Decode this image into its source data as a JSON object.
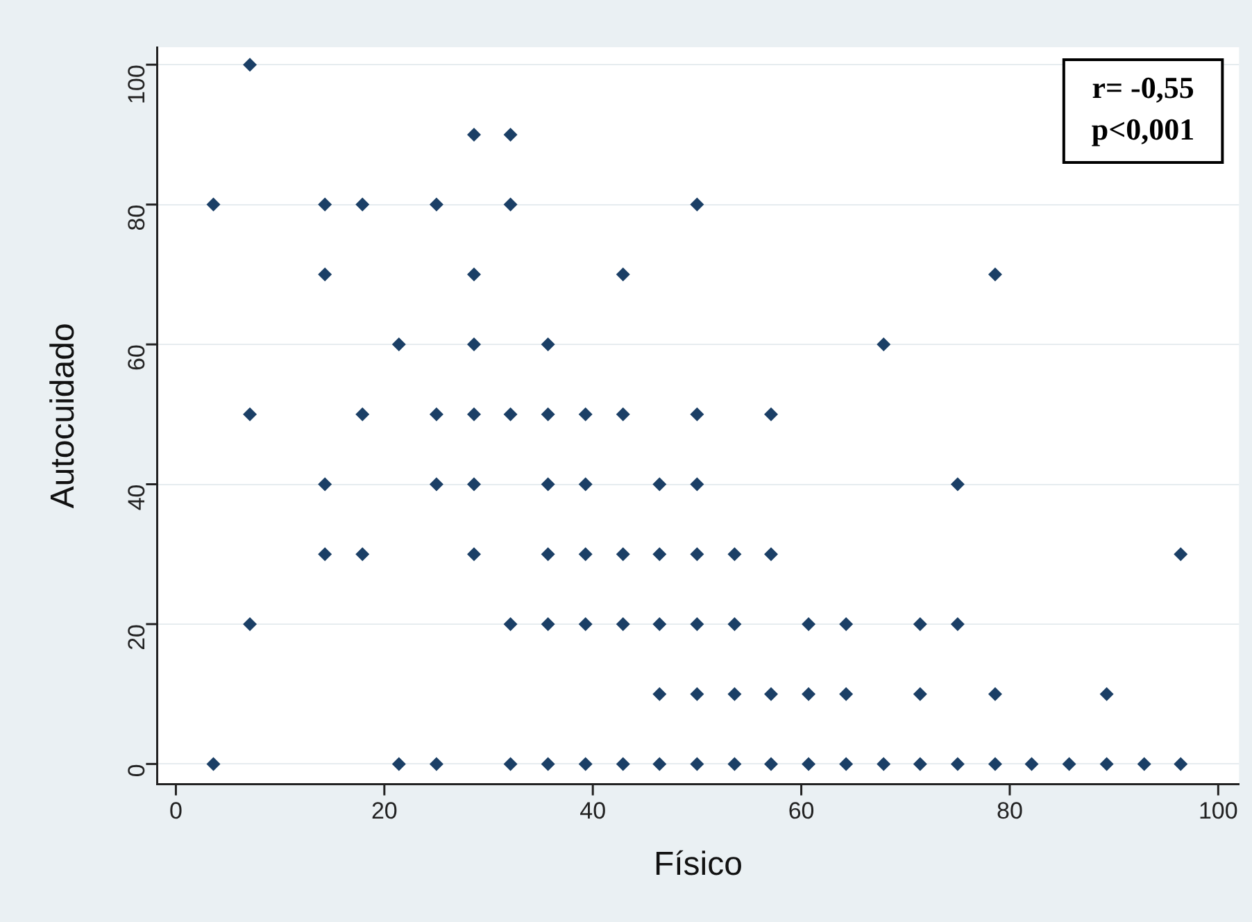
{
  "chart_data": {
    "type": "scatter",
    "xlabel": "Físico",
    "ylabel": "Autocuidado",
    "xlim": [
      -1.8,
      102
    ],
    "ylim": [
      -2.9,
      102.5
    ],
    "xticks": [
      0,
      20,
      40,
      60,
      80,
      100
    ],
    "yticks": [
      0,
      20,
      40,
      60,
      80,
      100
    ],
    "grid": "y",
    "marker": "diamond",
    "legend": false,
    "annotations": [
      "r= -0,55",
      "p<0,001"
    ],
    "series": [
      {
        "color": "#1b3f66",
        "x": [
          3.6,
          3.6,
          7.1,
          7.1,
          7.1,
          14.3,
          14.3,
          14.3,
          14.3,
          17.9,
          17.9,
          17.9,
          21.4,
          21.4,
          25,
          25,
          25,
          25,
          28.6,
          28.6,
          28.6,
          28.6,
          28.6,
          28.6,
          32.1,
          32.1,
          32.1,
          32.1,
          32.1,
          35.7,
          35.7,
          35.7,
          35.7,
          35.7,
          35.7,
          39.3,
          39.3,
          39.3,
          39.3,
          39.3,
          42.9,
          42.9,
          42.9,
          42.9,
          42.9,
          46.4,
          46.4,
          46.4,
          46.4,
          46.4,
          50,
          50,
          50,
          50,
          50,
          50,
          50,
          53.6,
          53.6,
          53.6,
          53.6,
          57.1,
          57.1,
          57.1,
          57.1,
          60.7,
          60.7,
          60.7,
          64.3,
          64.3,
          64.3,
          67.9,
          67.9,
          71.4,
          71.4,
          71.4,
          75,
          75,
          75,
          78.6,
          78.6,
          78.6,
          82.1,
          85.7,
          89.3,
          89.3,
          92.9,
          96.4,
          96.4
        ],
        "values": [
          80,
          0,
          100,
          50,
          20,
          80,
          70,
          40,
          30,
          80,
          50,
          30,
          60,
          0,
          80,
          50,
          40,
          0,
          90,
          70,
          60,
          50,
          40,
          30,
          90,
          80,
          50,
          20,
          0,
          60,
          50,
          40,
          30,
          20,
          0,
          50,
          40,
          30,
          20,
          0,
          70,
          50,
          30,
          20,
          0,
          40,
          30,
          20,
          10,
          0,
          80,
          50,
          40,
          30,
          20,
          10,
          0,
          30,
          20,
          10,
          0,
          50,
          30,
          10,
          0,
          20,
          10,
          0,
          20,
          10,
          0,
          60,
          0,
          20,
          10,
          0,
          40,
          20,
          0,
          70,
          10,
          0,
          0,
          0,
          10,
          0,
          0,
          30,
          0
        ]
      }
    ]
  }
}
